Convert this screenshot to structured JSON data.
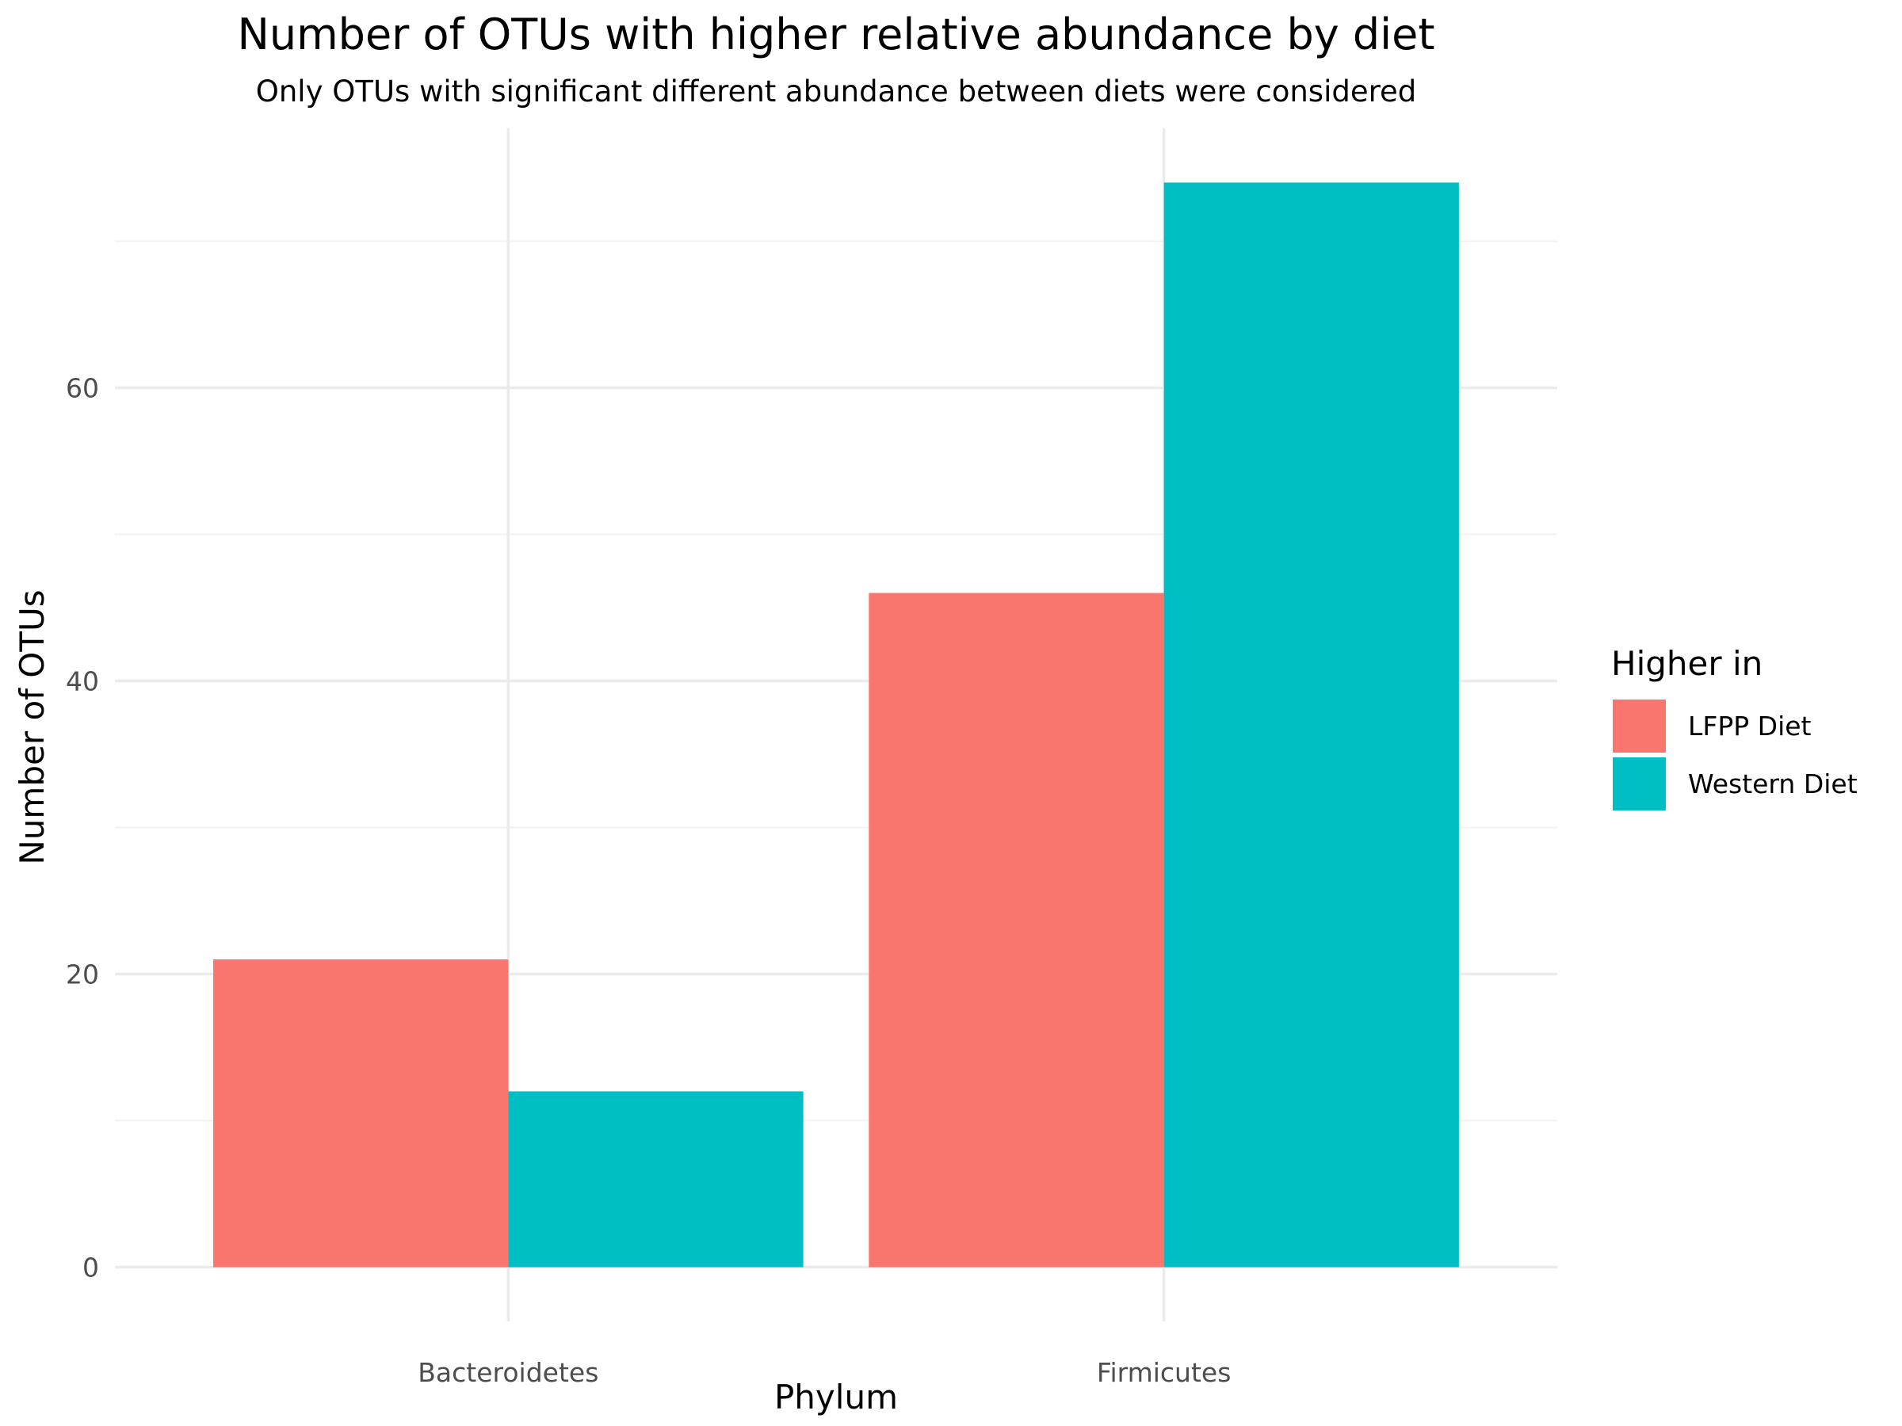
{
  "chart_data": {
    "type": "bar",
    "title": "Number of OTUs with higher relative abundance by diet",
    "subtitle": "Only OTUs with significant different abundance between diets were considered",
    "xlabel": "Phylum",
    "ylabel": "Number of OTUs",
    "categories": [
      "Bacteroidetes",
      "Firmicutes"
    ],
    "series": [
      {
        "name": "LFPP Diet",
        "color": "#F8766D",
        "values": [
          21,
          46
        ]
      },
      {
        "name": "Western Diet",
        "color": "#00BFC4",
        "values": [
          12,
          74
        ]
      }
    ],
    "ylim": [
      -3.7,
      77.7
    ],
    "yticks": [
      0,
      20,
      40,
      60
    ],
    "grid": true,
    "legend": {
      "title": "Higher in",
      "placement": "right"
    }
  }
}
